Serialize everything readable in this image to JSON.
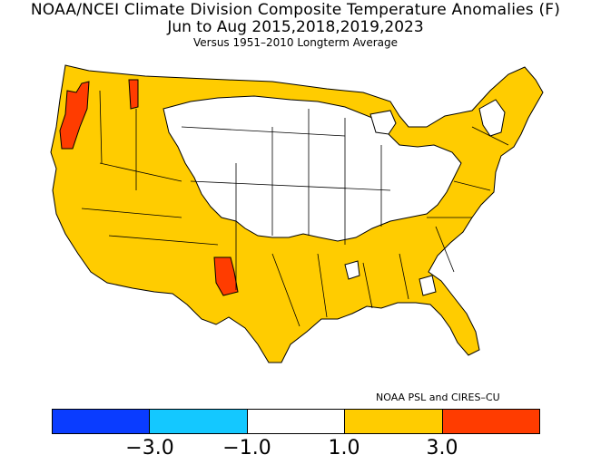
{
  "title_line1": "NOAA/NCEI Climate Division Composite Temperature Anomalies (F)",
  "title_line2": "Jun to Aug  2015,2018,2019,2023",
  "title_line3": "Versus 1951–2010 Longterm Average",
  "credit": "NOAA PSL and CIRES–CU",
  "colors": {
    "ocean": "#ffffff",
    "land_border": "#000000",
    "bin_1": "#0a3cff",
    "bin_2": "#14c8ff",
    "bin_3": "#ffffff",
    "bin_4": "#ffcc00",
    "bin_5": "#ff3c00"
  },
  "legend": {
    "ticks": [
      "−3.0",
      "−1.0",
      "1.0",
      "3.0"
    ],
    "bins": [
      "< -3.0",
      "-3.0 to -1.0",
      "-1.0 to 1.0",
      "1.0 to 3.0",
      "> 3.0"
    ]
  },
  "map": {
    "type": "choropleth",
    "region": "Contiguous United States climate divisions",
    "regions_by_bin": {
      "1.0 to 3.0": [
        "West",
        "Southwest",
        "Pacific Northwest",
        "Gulf Coast",
        "Southeast",
        "Atlantic Coast",
        "New England"
      ],
      "> 3.0": [
        "Western Washington/Oregon coast",
        "Northern Idaho panhandle",
        "South-central New Mexico"
      ],
      "-1.0 to 1.0": [
        "Northern Plains",
        "Midwest",
        "Great Lakes",
        "Ohio Valley",
        "Central Plains"
      ]
    }
  }
}
